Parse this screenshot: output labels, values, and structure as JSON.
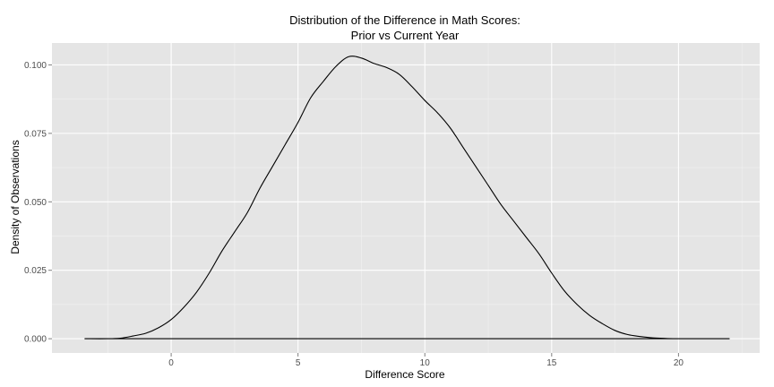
{
  "chart_data": {
    "type": "area",
    "title_lines": [
      "Distribution of the Difference in Math Scores:",
      "Prior vs Current Year"
    ],
    "xlabel": "Difference Score",
    "ylabel": "Density of Observations",
    "xlim": [
      -4.7,
      23.2
    ],
    "ylim": [
      -0.0052,
      0.108
    ],
    "x_ticks": [
      0,
      5,
      10,
      15,
      20
    ],
    "x_tick_labels": [
      "0",
      "5",
      "10",
      "15",
      "20"
    ],
    "x_minor_ticks": [
      -2.5,
      2.5,
      7.5,
      12.5,
      17.5,
      22.5
    ],
    "y_ticks": [
      0,
      0.025,
      0.05,
      0.075,
      0.1
    ],
    "y_tick_labels": [
      "0.000",
      "0.025",
      "0.050",
      "0.075",
      "0.100"
    ],
    "y_minor_ticks": [
      0.0125,
      0.0375,
      0.0625,
      0.0875
    ],
    "grid": true,
    "legend": "none",
    "colors": {
      "panel": "#e5e5e5",
      "grid_major": "#ffffff",
      "grid_minor": "#f2f2f2",
      "line": "#000000",
      "tick_text": "#4d4d4d"
    },
    "series": [
      {
        "x": [
          -3.4,
          -2.5,
          -2.0,
          -1.5,
          -1.0,
          -0.5,
          0.0,
          0.5,
          1.0,
          1.5,
          2.0,
          2.5,
          3.0,
          3.5,
          4.0,
          4.5,
          5.0,
          5.5,
          6.0,
          6.5,
          7.0,
          7.5,
          8.0,
          8.5,
          9.0,
          9.5,
          10.0,
          10.5,
          11.0,
          11.5,
          12.0,
          12.5,
          13.0,
          13.5,
          14.0,
          14.5,
          15.0,
          15.5,
          16.0,
          16.5,
          17.0,
          17.5,
          18.0,
          18.5,
          19.0,
          19.5,
          20.0,
          21.0,
          22.0
        ],
        "y": [
          0.0,
          0.0,
          0.0002,
          0.001,
          0.002,
          0.004,
          0.007,
          0.0115,
          0.017,
          0.024,
          0.032,
          0.039,
          0.046,
          0.055,
          0.063,
          0.071,
          0.079,
          0.088,
          0.094,
          0.0995,
          0.103,
          0.1025,
          0.1005,
          0.099,
          0.0965,
          0.092,
          0.087,
          0.0825,
          0.077,
          0.07,
          0.063,
          0.056,
          0.049,
          0.043,
          0.037,
          0.031,
          0.024,
          0.0175,
          0.0125,
          0.0085,
          0.0055,
          0.003,
          0.0015,
          0.0008,
          0.0003,
          0.0001,
          0.0,
          0.0,
          0.0
        ]
      }
    ]
  }
}
